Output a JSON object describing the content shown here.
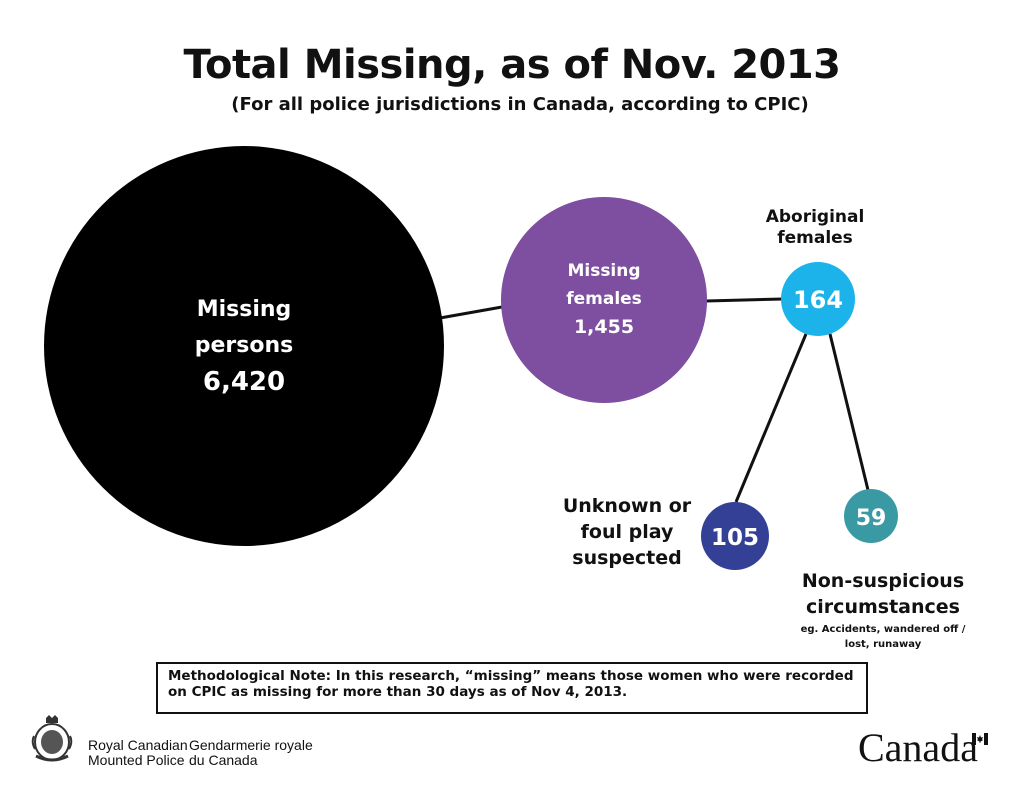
{
  "header": {
    "title": "Total Missing, as of Nov. 2013",
    "subtitle": "(For all police jurisdictions in Canada, according to CPIC)"
  },
  "nodes": {
    "missing_persons": {
      "label_line1": "Missing",
      "label_line2": "persons",
      "value": "6,420",
      "color": "#000000"
    },
    "missing_females": {
      "label_line1": "Missing",
      "label_line2": "females",
      "value": "1,455",
      "color": "#7e4ea0"
    },
    "aboriginal_females": {
      "label_line1": "Aboriginal",
      "label_line2": "females",
      "value": "164",
      "color": "#1bb3ea"
    },
    "unknown_foul_play": {
      "label_line1": "Unknown or",
      "label_line2": "foul play",
      "label_line3": "suspected",
      "value": "105",
      "color": "#343f96"
    },
    "non_suspicious": {
      "label_line1": "Non-suspicious",
      "label_line2": "circumstances",
      "example_line1": "eg. Accidents, wandered off /",
      "example_line2": "lost, runaway",
      "value": "59",
      "color": "#3a9aa3"
    }
  },
  "note": {
    "text": "Methodological Note: In this research, “missing” means those women who were recorded on CPIC as missing for more than 30 days as of Nov 4, 2013."
  },
  "footer": {
    "org_en_line1": "Royal Canadian",
    "org_en_line2": "Mounted Police",
    "org_fr_line1": "Gendarmerie royale",
    "org_fr_line2": "du Canada",
    "wordmark": "Canada",
    "flag_color": "#d52b1e"
  }
}
